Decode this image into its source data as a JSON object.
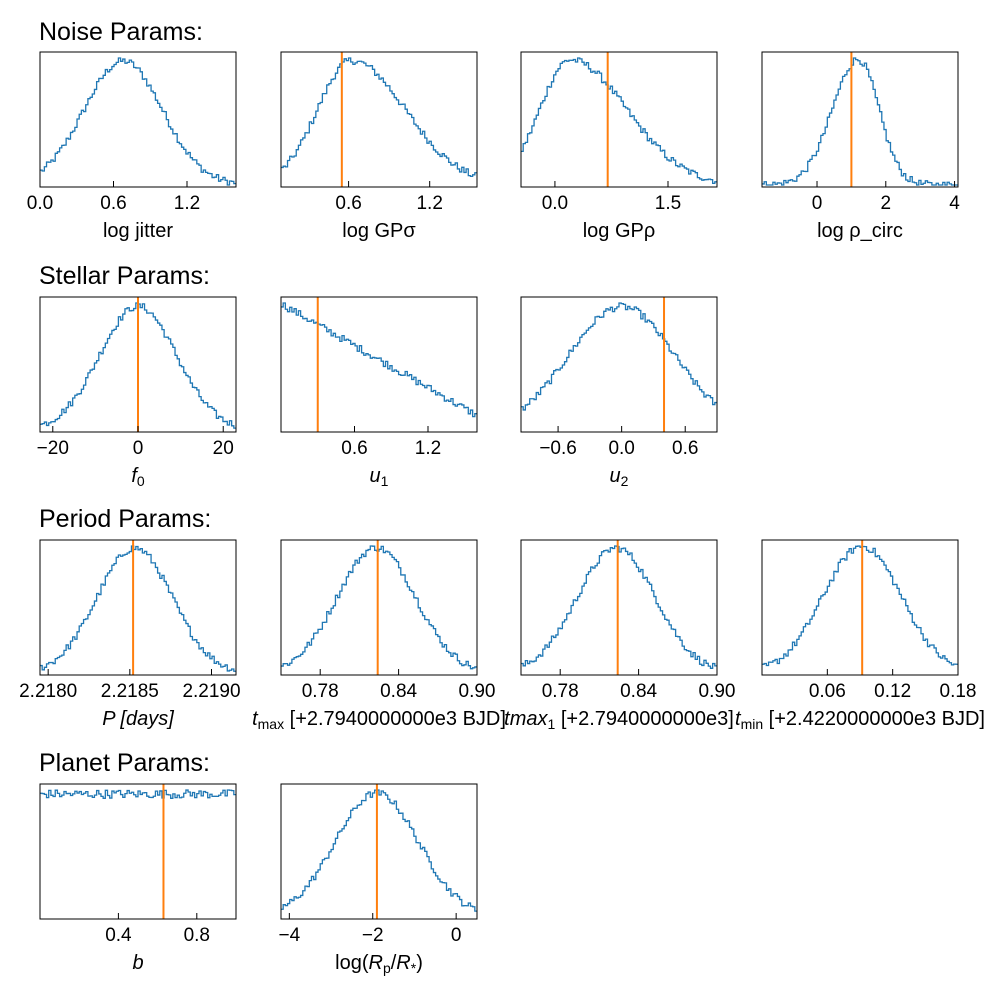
{
  "sections": [
    {
      "title": "Noise Params:"
    },
    {
      "title": "Stellar Params:"
    },
    {
      "title": "Period Params:"
    },
    {
      "title": "Planet Params:"
    }
  ],
  "colors": {
    "histogram": "#1f77b4",
    "truth_line": "#ff7f0e",
    "axes": "#000000"
  },
  "chart_data": [
    {
      "type": "histogram",
      "xlabel": "log jitter",
      "xlim": [
        0.0,
        1.6
      ],
      "xticks": [
        0.0,
        0.6,
        1.2
      ],
      "xtick_labels": [
        "0.0",
        "0.6",
        "1.2"
      ],
      "dist": {
        "shape": "gaussian",
        "mean": 0.68,
        "sd": 0.32
      },
      "truth": null
    },
    {
      "type": "histogram",
      "xlabel": "log GPσ",
      "xlim": [
        0.1,
        1.55
      ],
      "xticks": [
        0.6,
        1.2
      ],
      "xtick_labels": [
        "0.6",
        "1.2"
      ],
      "dist": {
        "shape": "skew",
        "mode": 0.62,
        "sd_left": 0.25,
        "sd_right": 0.4
      },
      "truth": 0.55
    },
    {
      "type": "histogram",
      "xlabel": "log GPρ",
      "xlim": [
        -0.45,
        2.15
      ],
      "xticks": [
        0.0,
        1.5
      ],
      "xtick_labels": [
        "0.0",
        "1.5"
      ],
      "dist": {
        "shape": "skew",
        "mode": 0.2,
        "sd_left": 0.4,
        "sd_right": 0.75
      },
      "truth": 0.7
    },
    {
      "type": "histogram",
      "xlabel": "log ρ_circ",
      "xlim": [
        -1.6,
        4.1
      ],
      "xticks": [
        0,
        2,
        4
      ],
      "xtick_labels": [
        "0",
        "2",
        "4"
      ],
      "dist": {
        "shape": "skew",
        "mode": 1.2,
        "sd_left": 0.75,
        "sd_right": 0.6
      },
      "truth": 1.0
    },
    {
      "type": "histogram",
      "xlabel": "f_0",
      "xlim": [
        -23,
        23
      ],
      "xticks": [
        -20,
        0,
        20
      ],
      "xtick_labels": [
        "−20",
        "0",
        "20"
      ],
      "dist": {
        "shape": "gaussian",
        "mean": 0,
        "sd": 9
      },
      "truth": 0.0
    },
    {
      "type": "histogram",
      "xlabel": "u_1",
      "xlim": [
        0.0,
        1.6
      ],
      "xticks": [
        0.6,
        1.2
      ],
      "xtick_labels": [
        "0.6",
        "1.2"
      ],
      "dist": {
        "shape": "linear",
        "start": 1.0,
        "end": 0.12
      },
      "truth": 0.3
    },
    {
      "type": "histogram",
      "xlabel": "u_2",
      "xlim": [
        -0.95,
        0.9
      ],
      "xticks": [
        -0.6,
        0.0,
        0.6
      ],
      "xtick_labels": [
        "−0.6",
        "0.0",
        "0.6"
      ],
      "dist": {
        "shape": "gaussian",
        "mean": 0.0,
        "sd": 0.5
      },
      "truth": 0.4
    },
    {
      "type": "histogram",
      "xlabel": "P [days]",
      "xlim": [
        2.21795,
        2.21915
      ],
      "xticks": [
        2.218,
        2.2185,
        2.219
      ],
      "xtick_labels": [
        "2.2180",
        "2.2185",
        "2.2190"
      ],
      "dist": {
        "shape": "gaussian",
        "mean": 2.21853,
        "sd": 0.00023
      },
      "truth": 2.21852
    },
    {
      "type": "histogram",
      "xlabel": "t_max [+2.7940000000e3 BJD]",
      "xlim": [
        0.75,
        0.9
      ],
      "xticks": [
        0.78,
        0.84,
        0.9
      ],
      "xtick_labels": [
        "0.78",
        "0.84",
        "0.90"
      ],
      "dist": {
        "shape": "gaussian",
        "mean": 0.823,
        "sd": 0.03
      },
      "truth": 0.824
    },
    {
      "type": "histogram",
      "xlabel": "tmax_1 [+2.7940000000e3]",
      "xlim": [
        0.75,
        0.9
      ],
      "xticks": [
        0.78,
        0.84,
        0.9
      ],
      "xtick_labels": [
        "0.78",
        "0.84",
        "0.90"
      ],
      "dist": {
        "shape": "gaussian",
        "mean": 0.823,
        "sd": 0.03
      },
      "truth": 0.824
    },
    {
      "type": "histogram",
      "xlabel": "t_min [+2.4220000000e3 BJD]",
      "xlim": [
        0.0,
        0.18
      ],
      "xticks": [
        0.06,
        0.12,
        0.18
      ],
      "xtick_labels": [
        "0.06",
        "0.12",
        "0.18"
      ],
      "dist": {
        "shape": "gaussian",
        "mean": 0.092,
        "sd": 0.036
      },
      "truth": 0.092
    },
    {
      "type": "histogram",
      "xlabel": "b",
      "xlim": [
        0.0,
        1.0
      ],
      "xticks": [
        0.4,
        0.8
      ],
      "xtick_labels": [
        "0.4",
        "0.8"
      ],
      "dist": {
        "shape": "uniform",
        "level": 0.86
      },
      "truth": 0.63
    },
    {
      "type": "histogram",
      "xlabel": "log(R_p/R_*)",
      "xlim": [
        -4.2,
        0.5
      ],
      "xticks": [
        -4,
        -2,
        0
      ],
      "xtick_labels": [
        "−4",
        "−2",
        "0"
      ],
      "dist": {
        "shape": "gaussian",
        "mean": -1.9,
        "sd": 1.0
      },
      "truth": -1.9
    }
  ]
}
